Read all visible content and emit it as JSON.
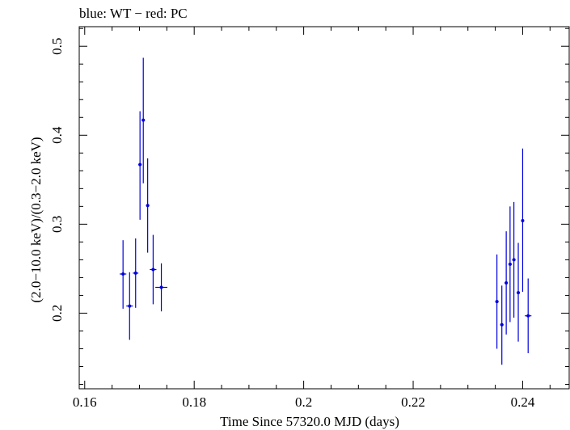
{
  "chart_data": {
    "type": "scatter",
    "title": "blue: WT − red: PC",
    "xlabel": "Time Since 57320.0 MJD (days)",
    "ylabel": "(2.0−10.0 keV)/(0.3−2.0 keV)",
    "xlim": [
      0.159,
      0.2485
    ],
    "ylim": [
      0.115,
      0.522
    ],
    "xticks": [
      0.16,
      0.18,
      0.2,
      0.22,
      0.24
    ],
    "xtick_labels": [
      "0.16",
      "0.18",
      "0.2",
      "0.22",
      "0.24"
    ],
    "yticks": [
      0.2,
      0.3,
      0.4,
      0.5
    ],
    "ytick_labels": [
      "0.2",
      "0.3",
      "0.4",
      "0.5"
    ],
    "grid": false,
    "series": [
      {
        "name": "WT",
        "color": "#0000dd",
        "points": [
          {
            "x": 0.167,
            "xerr": 0.0006,
            "y": 0.244,
            "ylo": 0.205,
            "yhi": 0.282
          },
          {
            "x": 0.1682,
            "xerr": 0.0006,
            "y": 0.208,
            "ylo": 0.17,
            "yhi": 0.246
          },
          {
            "x": 0.1693,
            "xerr": 0.0005,
            "y": 0.245,
            "ylo": 0.206,
            "yhi": 0.284
          },
          {
            "x": 0.1701,
            "xerr": 0.0003,
            "y": 0.367,
            "ylo": 0.305,
            "yhi": 0.427
          },
          {
            "x": 0.1707,
            "xerr": 0.0003,
            "y": 0.417,
            "ylo": 0.346,
            "yhi": 0.487
          },
          {
            "x": 0.1715,
            "xerr": 0.0003,
            "y": 0.321,
            "ylo": 0.268,
            "yhi": 0.374
          },
          {
            "x": 0.1725,
            "xerr": 0.0006,
            "y": 0.249,
            "ylo": 0.21,
            "yhi": 0.288
          },
          {
            "x": 0.174,
            "xerr": 0.0011,
            "y": 0.229,
            "ylo": 0.202,
            "yhi": 0.256
          },
          {
            "x": 0.2353,
            "xerr": 0.0003,
            "y": 0.213,
            "ylo": 0.16,
            "yhi": 0.266
          },
          {
            "x": 0.2362,
            "xerr": 0.0003,
            "y": 0.187,
            "ylo": 0.142,
            "yhi": 0.231
          },
          {
            "x": 0.237,
            "xerr": 0.0003,
            "y": 0.234,
            "ylo": 0.176,
            "yhi": 0.292
          },
          {
            "x": 0.2377,
            "xerr": 0.0003,
            "y": 0.255,
            "ylo": 0.19,
            "yhi": 0.32
          },
          {
            "x": 0.2384,
            "xerr": 0.0003,
            "y": 0.26,
            "ylo": 0.195,
            "yhi": 0.325
          },
          {
            "x": 0.2392,
            "xerr": 0.0003,
            "y": 0.223,
            "ylo": 0.168,
            "yhi": 0.279
          },
          {
            "x": 0.24,
            "xerr": 0.0002,
            "y": 0.304,
            "ylo": 0.224,
            "yhi": 0.385
          },
          {
            "x": 0.241,
            "xerr": 0.0006,
            "y": 0.197,
            "ylo": 0.155,
            "yhi": 0.239
          }
        ]
      }
    ]
  }
}
